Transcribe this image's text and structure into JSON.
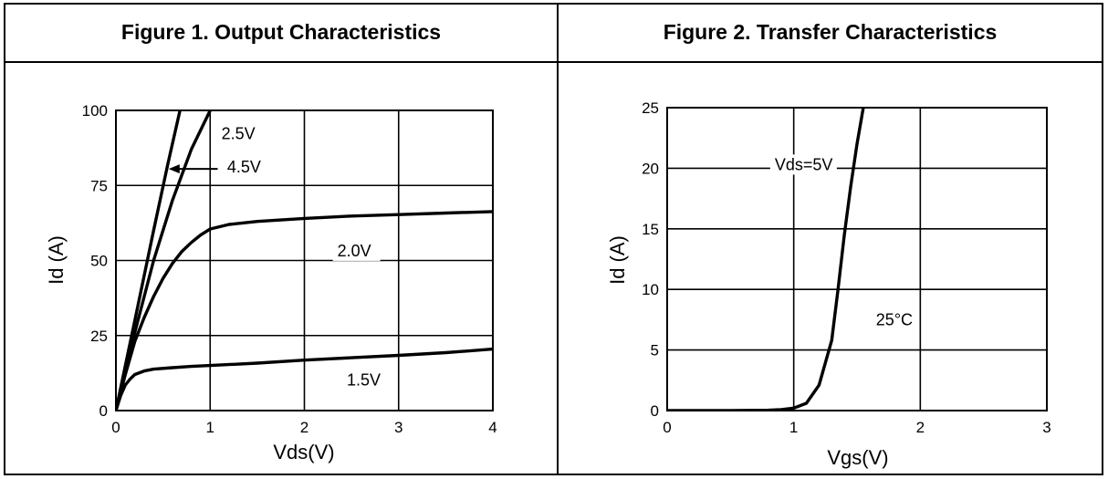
{
  "chart_data": [
    {
      "type": "line",
      "title": "Figure 1. Output Characteristics",
      "xlabel": "Vds(V)",
      "ylabel": "Id (A)",
      "xlim": [
        0,
        4
      ],
      "ylim": [
        0,
        100
      ],
      "x_ticks": [
        "0",
        "1",
        "2",
        "3",
        "4"
      ],
      "y_ticks": [
        "0",
        "25",
        "50",
        "75",
        "100"
      ],
      "grid": true,
      "series": [
        {
          "name": "4.5V",
          "x": [
            0,
            0.2,
            0.4,
            0.55,
            0.68
          ],
          "y": [
            0,
            30,
            60,
            82,
            100
          ]
        },
        {
          "name": "2.5V",
          "x": [
            0,
            0.2,
            0.4,
            0.6,
            0.8,
            1.0
          ],
          "y": [
            0,
            26,
            50,
            70,
            87,
            100
          ]
        },
        {
          "name": "2.0V",
          "x": [
            0,
            0.1,
            0.2,
            0.3,
            0.4,
            0.5,
            0.6,
            0.7,
            0.8,
            0.9,
            1.0,
            1.2,
            1.5,
            2.0,
            2.5,
            3.0,
            3.5,
            4.0
          ],
          "y": [
            0,
            12,
            23,
            31,
            38,
            44,
            49,
            53,
            56,
            58.5,
            60.5,
            62,
            63,
            64,
            64.8,
            65.3,
            65.8,
            66.3
          ]
        },
        {
          "name": "1.5V",
          "x": [
            0,
            0.05,
            0.1,
            0.15,
            0.2,
            0.3,
            0.4,
            0.6,
            0.8,
            1.0,
            1.5,
            2.0,
            2.5,
            3.0,
            3.5,
            4.0
          ],
          "y": [
            0,
            5,
            8.5,
            10.5,
            12,
            13.2,
            13.8,
            14.3,
            14.7,
            15,
            15.8,
            16.8,
            17.6,
            18.4,
            19.3,
            20.5
          ]
        }
      ],
      "annotations": [
        {
          "text": "2.5V",
          "x": 1.12,
          "y": 91
        },
        {
          "text": "4.5V",
          "x": 1.18,
          "y": 80
        },
        {
          "text": "2.0V",
          "x": 2.35,
          "y": 52
        },
        {
          "text": "1.5V",
          "x": 2.45,
          "y": 9
        }
      ]
    },
    {
      "type": "line",
      "title": "Figure 2. Transfer Characteristics",
      "xlabel": "Vgs(V)",
      "ylabel": "Id (A)",
      "xlim": [
        0,
        3
      ],
      "ylim": [
        0,
        25
      ],
      "x_ticks": [
        "0",
        "1",
        "2",
        "3"
      ],
      "y_ticks": [
        "0",
        "5",
        "10",
        "15",
        "20",
        "25"
      ],
      "grid": true,
      "series": [
        {
          "name": "Vds=5V / 25°C",
          "x": [
            0,
            0.5,
            0.8,
            0.9,
            1.0,
            1.1,
            1.2,
            1.3,
            1.35,
            1.4,
            1.45,
            1.5,
            1.55
          ],
          "y": [
            0,
            0,
            0.03,
            0.08,
            0.2,
            0.6,
            2.1,
            5.8,
            10,
            14.5,
            18.5,
            22,
            25
          ]
        }
      ],
      "annotations": [
        {
          "text": "Vds=5V",
          "x": 0.85,
          "y": 20
        },
        {
          "text": "25°C",
          "x": 1.65,
          "y": 7.2
        }
      ]
    }
  ]
}
